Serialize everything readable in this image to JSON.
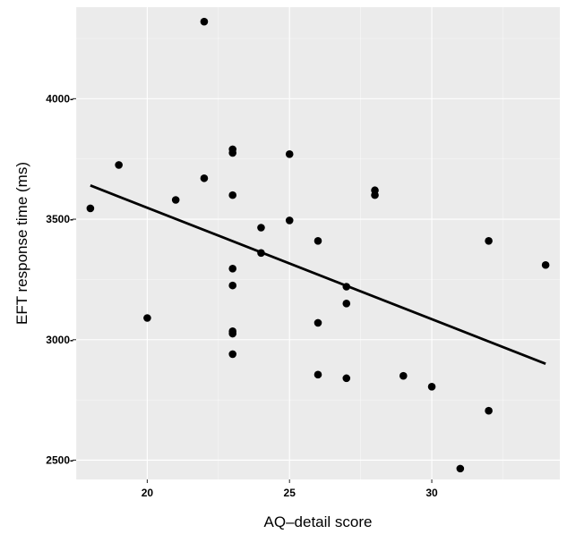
{
  "chart_data": {
    "type": "scatter",
    "xlabel": "AQ–detail score",
    "ylabel": "EFT response time (ms)",
    "xlim": [
      17.5,
      34.5
    ],
    "ylim": [
      2420,
      4380
    ],
    "x_ticks": [
      20,
      25,
      30
    ],
    "x_tick_labels": [
      "20",
      "25",
      "30"
    ],
    "y_ticks": [
      2500,
      3000,
      3500,
      4000
    ],
    "y_tick_labels": [
      "2500-",
      "3000-",
      "3500-",
      "4000-"
    ],
    "grid": true,
    "background": "#ebebeb",
    "point_color": "#000000",
    "points": [
      {
        "x": 18,
        "y": 3545
      },
      {
        "x": 19,
        "y": 3725
      },
      {
        "x": 20,
        "y": 3090
      },
      {
        "x": 21,
        "y": 3580
      },
      {
        "x": 22,
        "y": 4320
      },
      {
        "x": 22,
        "y": 3670
      },
      {
        "x": 23,
        "y": 3790
      },
      {
        "x": 23,
        "y": 3775
      },
      {
        "x": 23,
        "y": 3600
      },
      {
        "x": 23,
        "y": 3295
      },
      {
        "x": 23,
        "y": 3225
      },
      {
        "x": 23,
        "y": 3035
      },
      {
        "x": 23,
        "y": 3025
      },
      {
        "x": 23,
        "y": 2940
      },
      {
        "x": 24,
        "y": 3465
      },
      {
        "x": 24,
        "y": 3360
      },
      {
        "x": 25,
        "y": 3770
      },
      {
        "x": 25,
        "y": 3495
      },
      {
        "x": 26,
        "y": 3410
      },
      {
        "x": 26,
        "y": 3070
      },
      {
        "x": 26,
        "y": 2855
      },
      {
        "x": 27,
        "y": 3220
      },
      {
        "x": 27,
        "y": 3150
      },
      {
        "x": 27,
        "y": 2840
      },
      {
        "x": 28,
        "y": 3620
      },
      {
        "x": 28,
        "y": 3600
      },
      {
        "x": 29,
        "y": 2850
      },
      {
        "x": 30,
        "y": 2805
      },
      {
        "x": 31,
        "y": 2465
      },
      {
        "x": 32,
        "y": 3410
      },
      {
        "x": 32,
        "y": 2705
      },
      {
        "x": 34,
        "y": 3310
      }
    ],
    "trend_line": {
      "x": [
        18,
        34
      ],
      "y": [
        3640,
        2900
      ]
    }
  }
}
